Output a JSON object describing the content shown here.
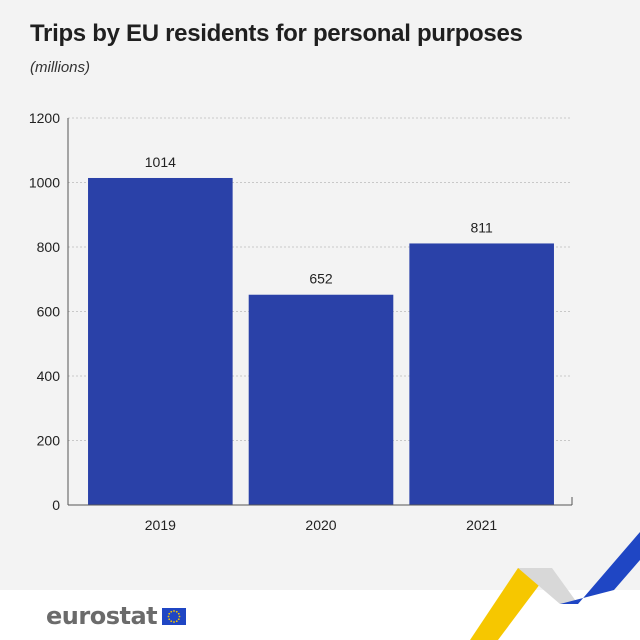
{
  "header": {
    "title": "Trips by EU residents for personal purposes",
    "subtitle": "(millions)"
  },
  "footer": {
    "logo_text": "eurostat"
  },
  "colors": {
    "bar": "#2a41a8",
    "grid": "#c8c8c8",
    "axis": "#555555",
    "background": "#f3f3f3",
    "yellow": "#f6c700",
    "blue": "#1f46c4"
  },
  "chart_data": {
    "type": "bar",
    "title": "Trips by EU residents for personal purposes",
    "subtitle": "(millions)",
    "categories": [
      "2019",
      "2020",
      "2021"
    ],
    "values": [
      1014,
      652,
      811
    ],
    "data_labels": [
      "1014",
      "652",
      "811"
    ],
    "ylim": [
      0,
      1200
    ],
    "yticks": [
      0,
      200,
      400,
      600,
      800,
      1000,
      1200
    ],
    "grid": true,
    "legend": "none"
  }
}
